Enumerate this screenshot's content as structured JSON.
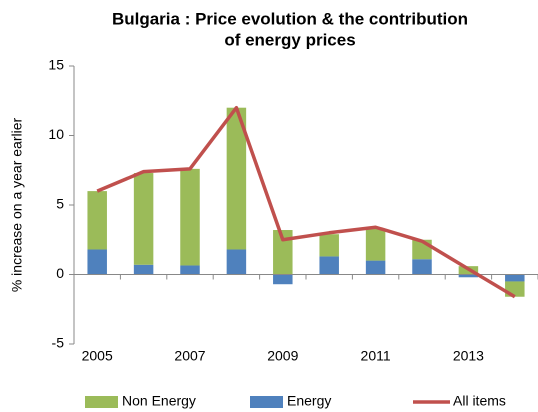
{
  "chart_data": {
    "type": "bar",
    "title": [
      "Bulgaria : Price evolution & the contribution",
      "of energy prices"
    ],
    "y_label": "% increase on a year earlier",
    "categories": [
      "2005",
      null,
      "2007",
      null,
      "2009",
      null,
      "2011",
      null,
      "2013",
      null
    ],
    "series": [
      {
        "name": "Non Energy",
        "color": "#9bbb59",
        "type": "bar",
        "values": [
          4.2,
          6.6,
          6.95,
          10.2,
          3.2,
          1.6,
          2.3,
          1.4,
          0.6,
          -1.1
        ]
      },
      {
        "name": "Energy",
        "color": "#4f81bd",
        "type": "bar",
        "values": [
          1.8,
          0.7,
          0.65,
          1.8,
          -0.7,
          1.3,
          1.0,
          1.1,
          -0.2,
          -0.5
        ]
      },
      {
        "name": "All items",
        "color": "#c0504d",
        "type": "line",
        "values": [
          6.0,
          7.4,
          7.6,
          12.0,
          2.5,
          3.0,
          3.4,
          2.4,
          0.4,
          -1.6
        ]
      }
    ],
    "stacked": true,
    "ylim": [
      -5,
      15
    ],
    "yticks": [
      -5,
      0,
      5,
      10,
      15
    ],
    "grid": false,
    "legend": "bottom"
  }
}
